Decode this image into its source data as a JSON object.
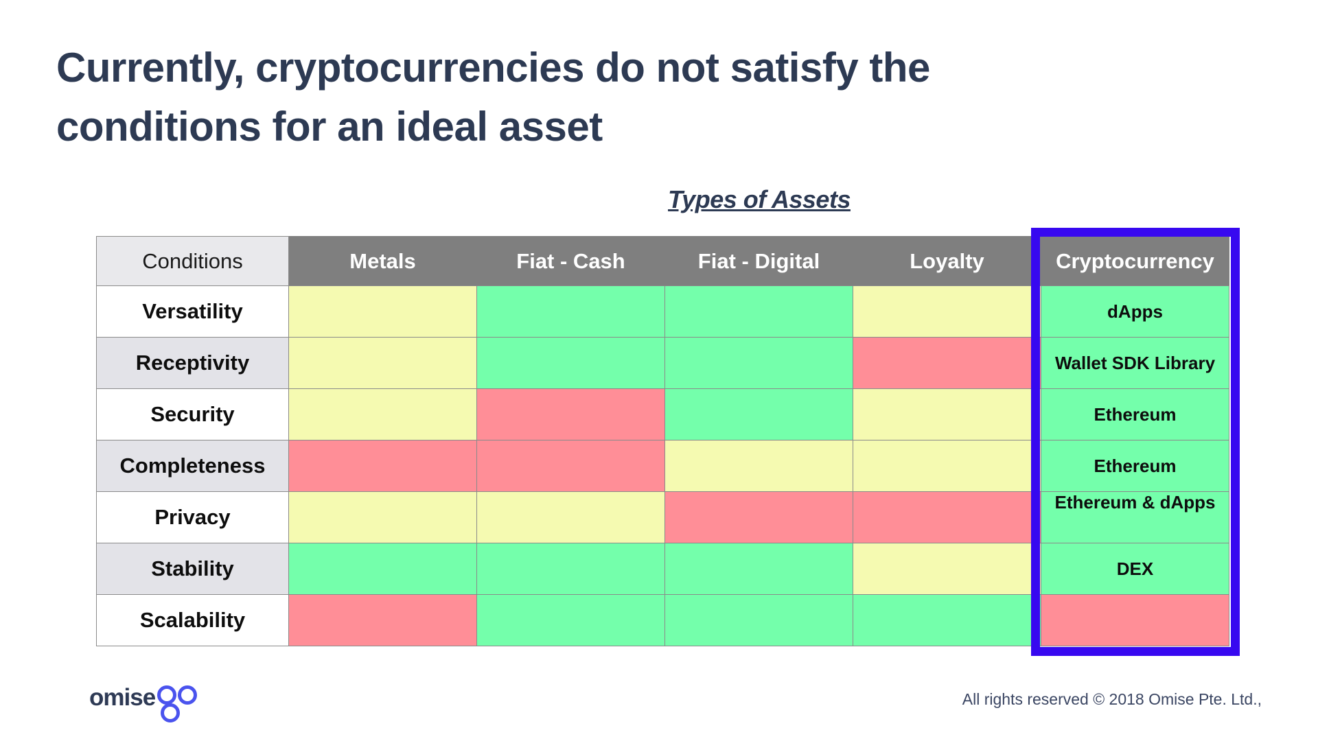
{
  "page": {
    "title_line1": "Currently, cryptocurrencies do not satisfy the",
    "title_line2": "conditions for an ideal asset",
    "section_heading": "Types of Assets"
  },
  "footer": {
    "logo_text": "omise",
    "logo_suffix": "go",
    "copyright": "All rights reserved © 2018 Omise Pte. Ltd.,"
  },
  "colors": {
    "title_navy": "#2d3a53",
    "header_gray": "#7f7f7f",
    "label_alt_gray": "#e3e3e8",
    "green": "#74ffab",
    "yellow": "#f5fab1",
    "red": "#ff8e97",
    "highlight_blue": "#3708f0",
    "logo_blue": "#4a53ee"
  },
  "chart_data": {
    "type": "table",
    "title": "Types of Assets",
    "columns": [
      "Conditions",
      "Metals",
      "Fiat - Cash",
      "Fiat - Digital",
      "Loyalty",
      "Cryptocurrency"
    ],
    "highlighted_column": "Cryptocurrency",
    "rows": [
      {
        "condition": "Versatility",
        "cells": [
          {
            "rating": "yellow"
          },
          {
            "rating": "green"
          },
          {
            "rating": "green"
          },
          {
            "rating": "yellow"
          },
          {
            "rating": "green",
            "note": "dApps"
          }
        ]
      },
      {
        "condition": "Receptivity",
        "cells": [
          {
            "rating": "yellow"
          },
          {
            "rating": "green"
          },
          {
            "rating": "green"
          },
          {
            "rating": "red"
          },
          {
            "rating": "green",
            "note": "Wallet SDK Library"
          }
        ]
      },
      {
        "condition": "Security",
        "cells": [
          {
            "rating": "yellow"
          },
          {
            "rating": "red"
          },
          {
            "rating": "green"
          },
          {
            "rating": "yellow"
          },
          {
            "rating": "green",
            "note": "Ethereum"
          }
        ]
      },
      {
        "condition": "Completeness",
        "cells": [
          {
            "rating": "red"
          },
          {
            "rating": "red"
          },
          {
            "rating": "yellow"
          },
          {
            "rating": "yellow"
          },
          {
            "rating": "green",
            "note": "Ethereum"
          }
        ]
      },
      {
        "condition": "Privacy",
        "cells": [
          {
            "rating": "yellow"
          },
          {
            "rating": "yellow"
          },
          {
            "rating": "red"
          },
          {
            "rating": "red"
          },
          {
            "rating": "green",
            "note": "Ethereum & dApps",
            "note_position": "top"
          }
        ]
      },
      {
        "condition": "Stability",
        "cells": [
          {
            "rating": "green"
          },
          {
            "rating": "green"
          },
          {
            "rating": "green"
          },
          {
            "rating": "yellow"
          },
          {
            "rating": "green",
            "note": "DEX"
          }
        ]
      },
      {
        "condition": "Scalability",
        "cells": [
          {
            "rating": "red"
          },
          {
            "rating": "green"
          },
          {
            "rating": "green"
          },
          {
            "rating": "green"
          },
          {
            "rating": "red"
          }
        ]
      }
    ]
  }
}
